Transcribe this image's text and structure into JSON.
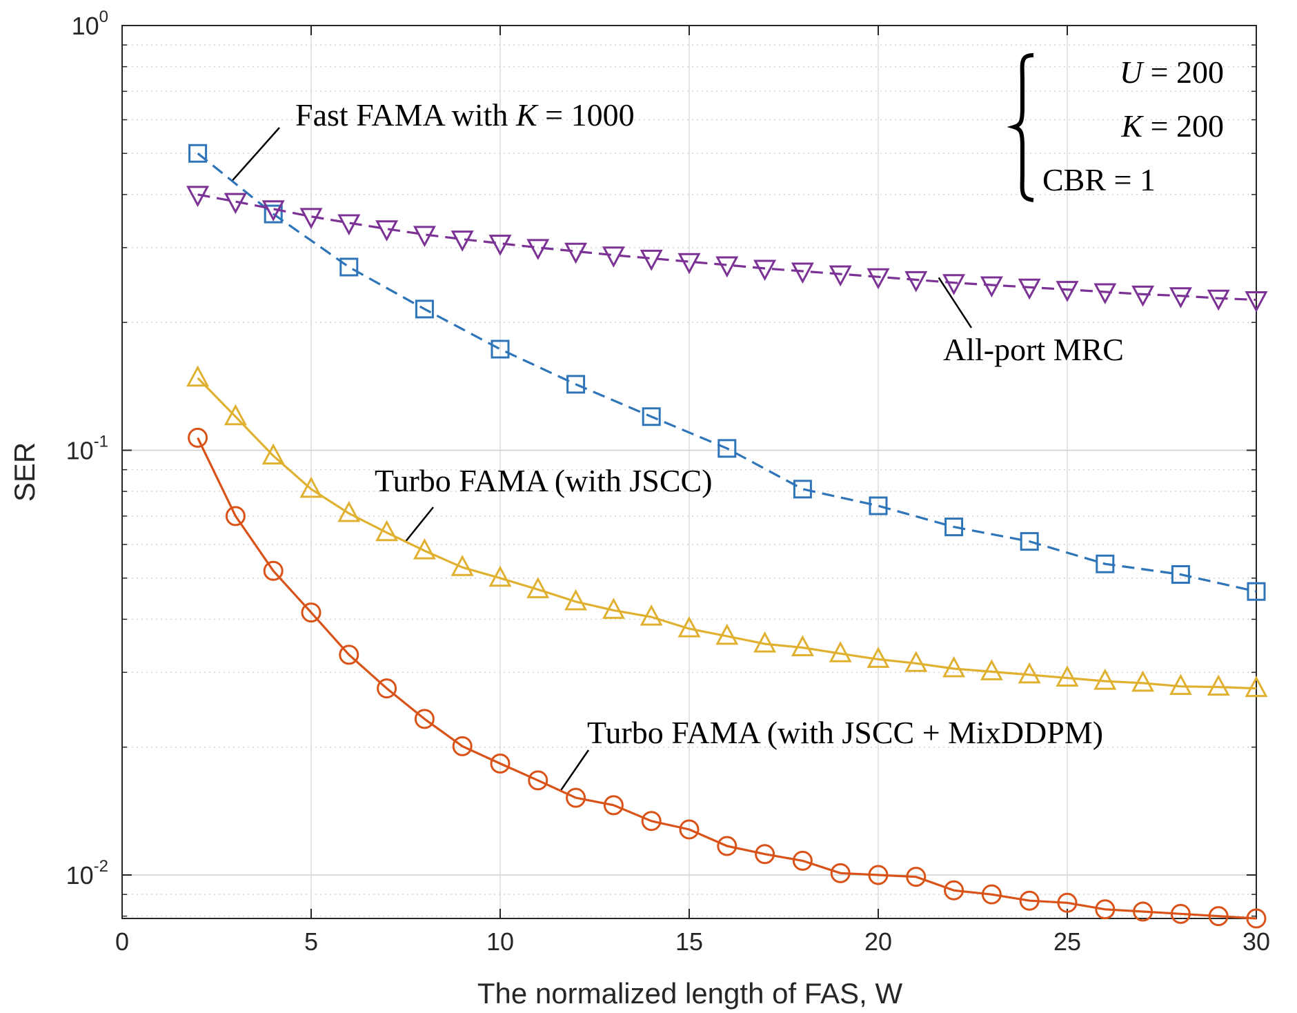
{
  "chart_data": {
    "type": "line",
    "title": "",
    "xlabel": "The normalized length of FAS, W",
    "ylabel": "SER",
    "xscale": "linear",
    "yscale": "log",
    "xlim": [
      0,
      30
    ],
    "ylim": [
      0.0079,
      1
    ],
    "grid": true,
    "x_ticks": [
      0,
      5,
      10,
      15,
      20,
      25,
      30
    ],
    "y_ticks": [
      {
        "value": 1,
        "base": "10",
        "exp": "0"
      },
      {
        "value": 0.1,
        "base": "10",
        "exp": "-1"
      },
      {
        "value": 0.01,
        "base": "10",
        "exp": "-2"
      }
    ],
    "series": [
      {
        "name": "Fast FAMA with K = 1000",
        "color": "#2E74B8",
        "marker": "square",
        "linestyle": "dashed",
        "x": [
          2,
          4,
          6,
          8,
          10,
          12,
          14,
          16,
          18,
          20,
          22,
          24,
          26,
          28,
          30
        ],
        "y": [
          0.5,
          0.36,
          0.27,
          0.215,
          0.173,
          0.143,
          0.12,
          0.101,
          0.081,
          0.074,
          0.066,
          0.061,
          0.054,
          0.051,
          0.0465
        ]
      },
      {
        "name": "All-port MRC",
        "color": "#7B3294",
        "marker": "triangle-down",
        "linestyle": "dashed",
        "x": [
          2,
          3,
          4,
          5,
          6,
          7,
          8,
          9,
          10,
          11,
          12,
          13,
          14,
          15,
          16,
          17,
          18,
          19,
          20,
          21,
          22,
          23,
          24,
          25,
          26,
          27,
          28,
          29,
          30
        ],
        "y": [
          0.4,
          0.385,
          0.37,
          0.355,
          0.343,
          0.332,
          0.322,
          0.314,
          0.307,
          0.3,
          0.294,
          0.288,
          0.283,
          0.278,
          0.273,
          0.268,
          0.264,
          0.26,
          0.256,
          0.252,
          0.248,
          0.245,
          0.242,
          0.239,
          0.236,
          0.233,
          0.231,
          0.228,
          0.226
        ]
      },
      {
        "name": "Turbo FAMA (with JSCC)",
        "color": "#E0B030",
        "marker": "triangle-up",
        "linestyle": "solid",
        "x": [
          2,
          3,
          4,
          5,
          6,
          7,
          8,
          9,
          10,
          11,
          12,
          13,
          14,
          15,
          16,
          17,
          18,
          19,
          20,
          21,
          22,
          23,
          24,
          25,
          26,
          27,
          28,
          29,
          30
        ],
        "y": [
          0.148,
          0.12,
          0.097,
          0.081,
          0.071,
          0.064,
          0.058,
          0.053,
          0.05,
          0.047,
          0.044,
          0.042,
          0.0405,
          0.038,
          0.0365,
          0.035,
          0.0343,
          0.0332,
          0.0322,
          0.0315,
          0.0306,
          0.0301,
          0.0296,
          0.0291,
          0.0286,
          0.0283,
          0.0278,
          0.0277,
          0.0275
        ]
      },
      {
        "name": "Turbo FAMA (with JSCC + MixDDPM)",
        "color": "#D95319",
        "marker": "circle",
        "linestyle": "solid",
        "x": [
          2,
          3,
          4,
          5,
          6,
          7,
          8,
          9,
          10,
          11,
          12,
          13,
          14,
          15,
          16,
          17,
          18,
          19,
          20,
          21,
          22,
          23,
          24,
          25,
          26,
          27,
          28,
          29,
          30
        ],
        "y": [
          0.107,
          0.07,
          0.052,
          0.0415,
          0.033,
          0.0275,
          0.0233,
          0.0201,
          0.0183,
          0.0167,
          0.0152,
          0.0146,
          0.0134,
          0.0128,
          0.0117,
          0.0112,
          0.0108,
          0.0101,
          0.01,
          0.0099,
          0.0092,
          0.009,
          0.0087,
          0.0086,
          0.0083,
          0.0082,
          0.0081,
          0.008,
          0.0079
        ]
      }
    ],
    "annotations": [
      {
        "id": "fast",
        "prefix": "Fast FAMA with ",
        "var": "K",
        "suffix": " = 1000"
      },
      {
        "id": "mrc",
        "text": "All-port MRC"
      },
      {
        "id": "jscc",
        "text": "Turbo FAMA (with JSCC)"
      },
      {
        "id": "mix",
        "text": "Turbo FAMA (with JSCC + MixDDPM)"
      }
    ],
    "parameters": [
      {
        "var": "U",
        "text": " = 200"
      },
      {
        "var": "K",
        "text": " = 200"
      },
      {
        "var": "",
        "text": "CBR = 1"
      }
    ]
  }
}
